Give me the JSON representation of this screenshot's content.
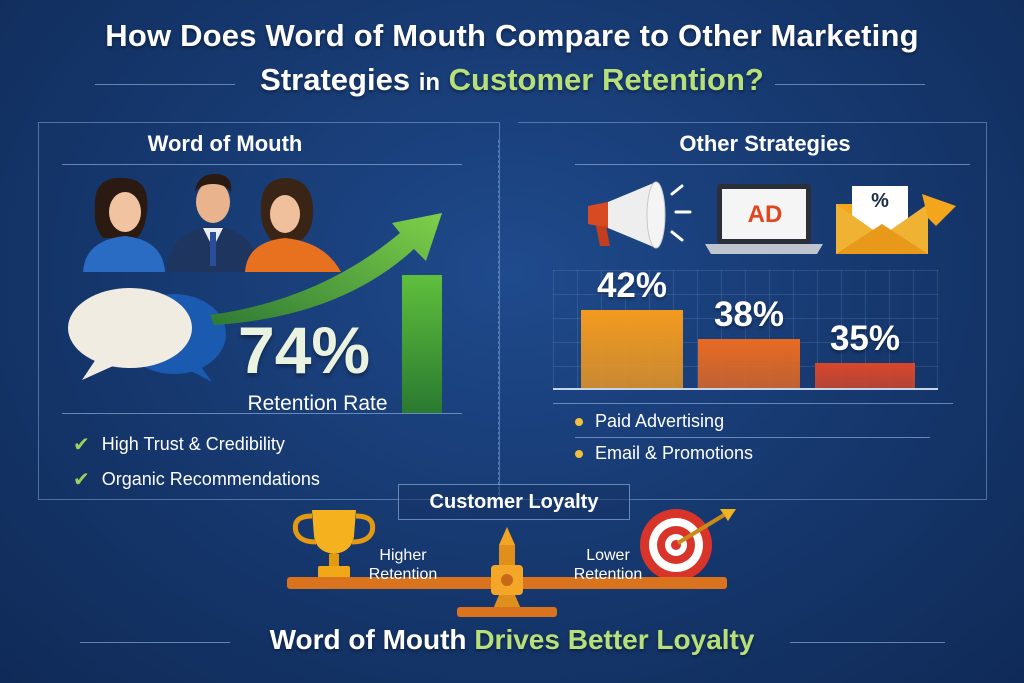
{
  "title": {
    "line1": "How Does Word of Mouth Compare to Other Marketing",
    "line2_part1": "Strategies",
    "line2_part2": "in",
    "line2_part3": "Customer Retention?"
  },
  "word_of_mouth": {
    "heading": "Word of Mouth",
    "stat_value": "74%",
    "stat_label": "Retention Rate",
    "benefits": [
      "High Trust & Credibility",
      "Organic Recommendations"
    ]
  },
  "other_strategies": {
    "heading": "Other Strategies",
    "ad_label": "AD",
    "envelope_label": "%",
    "legend": [
      "Paid Advertising",
      "Email & Promotions"
    ]
  },
  "chart_data": {
    "type": "bar",
    "categories": [
      "",
      "",
      ""
    ],
    "values": [
      42,
      38,
      35
    ],
    "data_labels": [
      "42%",
      "38%",
      "35%"
    ],
    "colors": [
      "#f39a1f",
      "#e86a22",
      "#d9472a"
    ],
    "ylim": [
      0,
      50
    ]
  },
  "loyalty": {
    "heading": "Customer Loyalty",
    "higher_line1": "Higher",
    "higher_line2": "Retention",
    "lower_line1": "Lower",
    "lower_line2": "Retention"
  },
  "footer": {
    "part1": "Word of Mouth",
    "part2": "Drives Better Loyalty"
  },
  "colors": {
    "background": "#173a72",
    "accent_green": "#b8e07a",
    "check_green": "#9fd05c",
    "bullet_gold": "#f0c040"
  }
}
